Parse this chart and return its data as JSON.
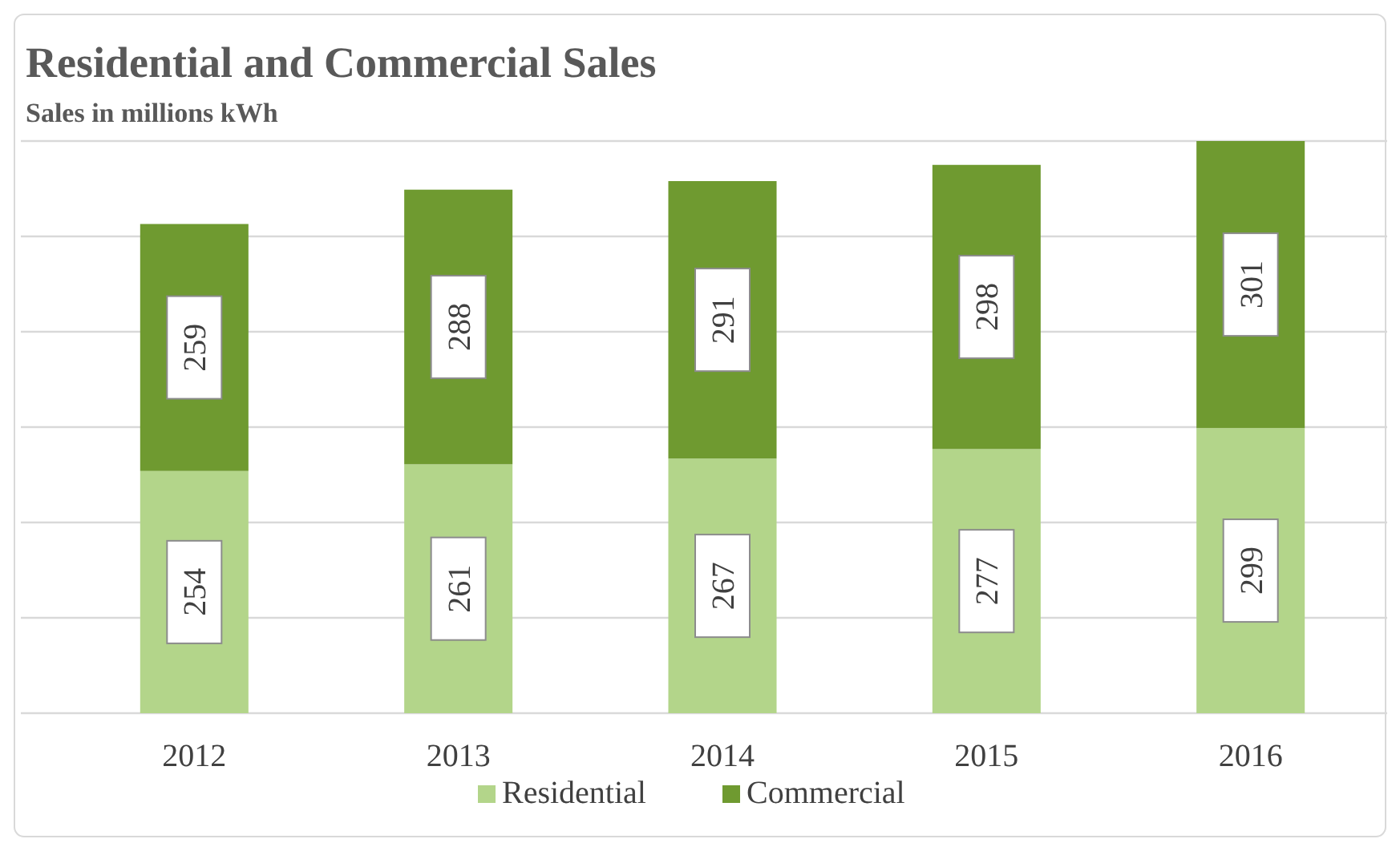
{
  "chart_data": {
    "type": "bar",
    "title": "Residential and Commercial Sales",
    "subtitle": "Sales in millions kWh",
    "categories": [
      "2012",
      "2013",
      "2014",
      "2015",
      "2016"
    ],
    "stacked": true,
    "series": [
      {
        "name": "Residential",
        "color": "#b3d58a",
        "values": [
          254,
          261,
          267,
          277,
          299
        ]
      },
      {
        "name": "Commercial",
        "color": "#6f9a30",
        "values": [
          259,
          288,
          291,
          298,
          301
        ]
      }
    ],
    "ylim": [
      0,
      600
    ],
    "yticks": [
      {
        "value": 0,
        "label": null
      },
      {
        "value": 100,
        "label": null
      },
      {
        "value": 200,
        "label": null
      },
      {
        "value": 300,
        "label": null
      },
      {
        "value": 400,
        "label": null
      },
      {
        "value": 500,
        "label": null
      },
      {
        "value": 600,
        "label": null
      }
    ],
    "tick_labels": "x",
    "grid": "y",
    "data_labels": true,
    "legend": "bottom"
  }
}
